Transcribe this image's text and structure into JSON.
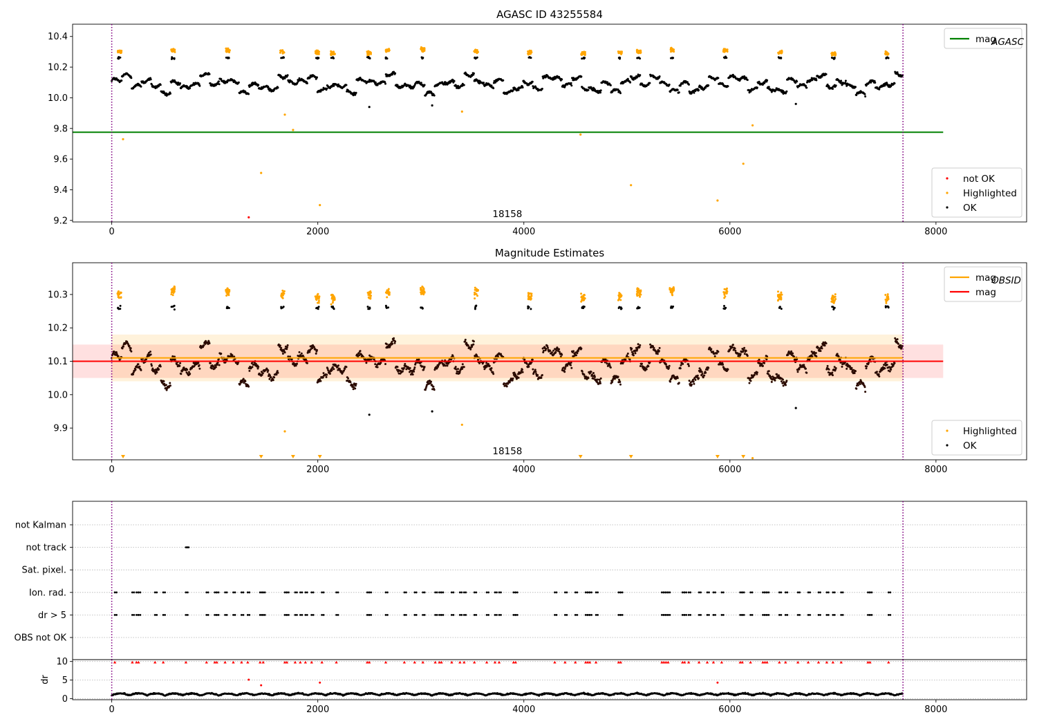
{
  "chart_data": [
    {
      "type": "scatter",
      "title": "AGASC ID 43255584",
      "xlabel": "",
      "ylabel": "",
      "xlim": [
        -380,
        8880
      ],
      "ylim": [
        9.19,
        10.48
      ],
      "xticks": [
        0,
        2000,
        4000,
        6000,
        8000
      ],
      "yticks": [
        9.2,
        9.4,
        9.6,
        9.8,
        10.0,
        10.2,
        10.4
      ],
      "obsid_label": {
        "text": "18158",
        "x": 3840,
        "y": 9.24
      },
      "vlines": [
        0,
        7680
      ],
      "lines": [
        {
          "name": "mag_AGASC",
          "y": 9.775,
          "x_range": [
            -380,
            8070
          ],
          "color": "#008000"
        }
      ],
      "series_params": [
        {
          "name": "OK",
          "color": "#000000",
          "baseline": 10.09,
          "amplitude": 0.05
        },
        {
          "name": "Highlighted",
          "color": "#ffa500",
          "level": 10.3
        },
        {
          "name": "not OK",
          "color": "#ff0000"
        }
      ],
      "highlight_groups": [
        60,
        580,
        1110,
        1640,
        1980,
        2130,
        2480,
        2660,
        3000,
        3520,
        4040,
        4560,
        4920,
        5100,
        5420,
        5940,
        6470,
        6990,
        7510
      ],
      "outliers": [
        {
          "series": "Highlighted",
          "points": [
            [
              110,
              9.73
            ],
            [
              1450,
              9.51
            ],
            [
              1680,
              9.89
            ],
            [
              1760,
              9.79
            ],
            [
              2020,
              9.3
            ],
            [
              3400,
              9.91
            ],
            [
              4550,
              9.76
            ],
            [
              5040,
              9.43
            ],
            [
              5880,
              9.33
            ],
            [
              6130,
              9.57
            ],
            [
              6220,
              9.82
            ]
          ]
        },
        {
          "series": "OK",
          "points": [
            [
              2500,
              9.94
            ],
            [
              3110,
              9.95
            ],
            [
              6640,
              9.96
            ]
          ]
        },
        {
          "series": "not OK",
          "points": [
            [
              1330,
              9.22
            ]
          ]
        }
      ],
      "legends": [
        {
          "position": "upper-right",
          "entries": [
            {
              "label": "mag",
              "sub": "AGASC",
              "kind": "line",
              "color": "#008000"
            }
          ]
        },
        {
          "position": "lower-right",
          "entries": [
            {
              "label": "not OK",
              "kind": "dot",
              "color": "#ff0000"
            },
            {
              "label": "Highlighted",
              "kind": "dot",
              "color": "#ffa500"
            },
            {
              "label": "OK",
              "kind": "dot",
              "color": "#000000"
            }
          ]
        }
      ]
    },
    {
      "type": "scatter",
      "title": "Magnitude Estimates",
      "xlabel": "",
      "ylabel": "",
      "xlim": [
        -380,
        8880
      ],
      "ylim": [
        9.805,
        10.395
      ],
      "xticks": [
        0,
        2000,
        4000,
        6000,
        8000
      ],
      "yticks": [
        9.9,
        10.0,
        10.1,
        10.2,
        10.3
      ],
      "obsid_label": {
        "text": "18158",
        "x": 3840,
        "y": 9.83
      },
      "vlines": [
        0,
        7680
      ],
      "bands": [
        {
          "y0": 10.05,
          "y1": 10.15,
          "x_range": [
            -380,
            8070
          ],
          "color": "#ff0000",
          "opacity": 0.12
        },
        {
          "y0": 10.04,
          "y1": 10.18,
          "x_range": [
            0,
            7680
          ],
          "color": "#ffa500",
          "opacity": 0.14
        }
      ],
      "lines": [
        {
          "name": "mag",
          "y": 10.1,
          "x_range": [
            -380,
            8070
          ],
          "color": "#ff0000"
        },
        {
          "name": "mag_OBSID",
          "y": 10.11,
          "x_range": [
            0,
            7680
          ],
          "color": "#ffa500"
        }
      ],
      "series_params": [
        {
          "name": "OK",
          "color": "#000000",
          "baseline": 10.09,
          "amplitude": 0.05
        },
        {
          "name": "Highlighted",
          "color": "#ffa500",
          "level": 10.3
        }
      ],
      "highlight_groups": [
        60,
        580,
        1110,
        1640,
        1980,
        2130,
        2480,
        2660,
        3000,
        3520,
        4040,
        4560,
        4920,
        5100,
        5420,
        5940,
        6470,
        6990,
        7510
      ],
      "outliers": [
        {
          "series": "Highlighted",
          "points": [
            [
              1680,
              9.89
            ],
            [
              3400,
              9.91
            ],
            [
              6220,
              9.81
            ]
          ]
        },
        {
          "series": "OK",
          "points": [
            [
              2500,
              9.94
            ],
            [
              3110,
              9.95
            ],
            [
              6640,
              9.96
            ]
          ]
        }
      ],
      "offscale_markers": [
        110,
        1450,
        1760,
        2020,
        4550,
        5040,
        5880,
        6130
      ],
      "legends": [
        {
          "position": "upper-right",
          "entries": [
            {
              "label": "mag",
              "sub": "OBSID",
              "kind": "line",
              "color": "#ffa500"
            },
            {
              "label": "mag",
              "kind": "line",
              "color": "#ff0000"
            }
          ]
        },
        {
          "position": "lower-right",
          "entries": [
            {
              "label": "Highlighted",
              "kind": "dot",
              "color": "#ffa500"
            },
            {
              "label": "OK",
              "kind": "dot",
              "color": "#000000"
            }
          ]
        }
      ]
    },
    {
      "type": "scatter",
      "title": "",
      "xlabel": "",
      "ylabel": "",
      "xlim": [
        -380,
        8880
      ],
      "vlines": [
        0,
        7680
      ],
      "flag_rows": [
        "not Kalman",
        "not track",
        "Sat. pixel.",
        "Ion. rad.",
        "dr > 5",
        "OBS not OK"
      ],
      "flag_points": {
        "not track": [
          720,
          730
        ],
        "Ion. rad.": [
          30,
          200,
          240,
          260,
          420,
          500,
          720,
          920,
          1000,
          1020,
          1100,
          1180,
          1260,
          1320,
          1440,
          1470,
          1680,
          1700,
          1780,
          1830,
          1880,
          1940,
          2040,
          2180,
          2480,
          2500,
          2660,
          2840,
          2940,
          3020,
          3140,
          3180,
          3200,
          3300,
          3380,
          3420,
          3520,
          3640,
          3720,
          3760,
          3900,
          3920,
          4300,
          4400,
          4500,
          4600,
          4620,
          4640,
          4700,
          4920,
          4940,
          5340,
          5360,
          5380,
          5400,
          5540,
          5560,
          5600,
          5700,
          5780,
          5840,
          5920,
          6100,
          6120,
          6200,
          6320,
          6340,
          6360,
          6480,
          6540,
          6660,
          6760,
          6860,
          6940,
          7000,
          7080,
          7340,
          7360,
          7540
        ],
        "dr > 5": [
          30,
          200,
          240,
          260,
          420,
          500,
          720,
          920,
          1000,
          1020,
          1100,
          1180,
          1260,
          1320,
          1440,
          1470,
          1680,
          1700,
          1780,
          1830,
          1880,
          1940,
          2040,
          2180,
          2480,
          2500,
          2660,
          2840,
          2940,
          3020,
          3140,
          3180,
          3200,
          3300,
          3380,
          3420,
          3520,
          3640,
          3720,
          3760,
          3900,
          3920,
          4300,
          4400,
          4500,
          4600,
          4620,
          4640,
          4700,
          4920,
          4940,
          5340,
          5360,
          5380,
          5400,
          5540,
          5560,
          5600,
          5700,
          5780,
          5840,
          5920,
          6100,
          6120,
          6200,
          6320,
          6340,
          6360,
          6480,
          6540,
          6660,
          6760,
          6860,
          6940,
          7000,
          7080,
          7340,
          7360,
          7540
        ]
      }
    },
    {
      "type": "scatter",
      "title": "",
      "xlabel": "",
      "ylabel": "dr",
      "xlim": [
        -380,
        8880
      ],
      "ylim": [
        -0.3,
        10.5
      ],
      "yticks": [
        0,
        5,
        10
      ],
      "xticks": [
        0,
        2000,
        4000,
        6000,
        8000
      ],
      "vlines": [
        0,
        7680
      ],
      "series_params": [
        {
          "name": "dr",
          "color": "#000000",
          "baseline": 0.9,
          "amplitude": 0.5
        }
      ],
      "clipped_marker_value": 9.8,
      "outliers": [
        {
          "series": "dr",
          "color": "#ff0000",
          "points": [
            [
              1330,
              5.1
            ],
            [
              1450,
              3.6
            ],
            [
              2020,
              4.3
            ],
            [
              5880,
              4.3
            ]
          ]
        }
      ]
    }
  ]
}
